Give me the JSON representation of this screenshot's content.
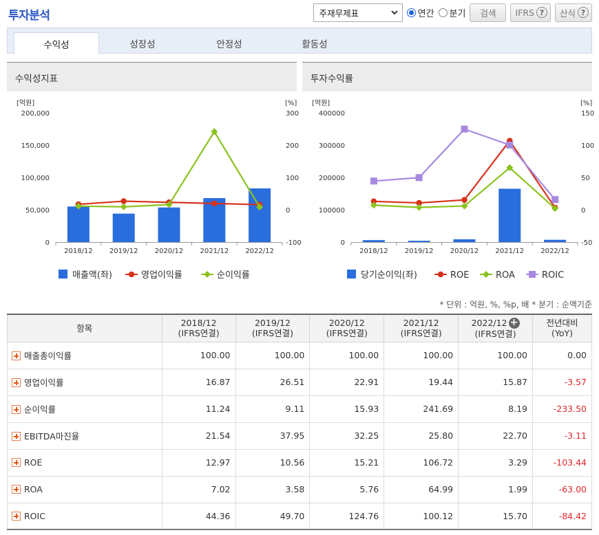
{
  "header": {
    "title": "투자분석",
    "select_value": "주재무제표",
    "radio_annual": "연간",
    "radio_quarter": "분기",
    "search_button": "검색",
    "ifrs_button": "IFRS",
    "calc_button": "산식",
    "help_glyph": "?"
  },
  "tabs": [
    "수익성",
    "성장성",
    "안정성",
    "활동성"
  ],
  "colors": {
    "bar": "#2a6ddc",
    "red_line": "#d6321c",
    "green_line": "#8cc21f",
    "purple_line": "#a789e0"
  },
  "chart_data": [
    {
      "type": "bar",
      "panel_title": "수익성지표",
      "left_unit": "[억원]",
      "right_unit": "[%]",
      "categories": [
        "2018/12",
        "2019/12",
        "2020/12",
        "2021/12",
        "2022/12"
      ],
      "left_ticks": [
        "200,000",
        "150,000",
        "100,000",
        "50,000",
        "0"
      ],
      "right_ticks": [
        "300",
        "200",
        "100",
        "0",
        "-100"
      ],
      "left_ylim": [
        0,
        200000
      ],
      "right_ylim": [
        -100,
        300
      ],
      "grid": false,
      "legend_position": "bottom",
      "series": [
        {
          "name": "매출액(좌)",
          "type": "bar",
          "axis": "left",
          "values": [
            55000,
            44000,
            53500,
            68000,
            83000
          ]
        },
        {
          "name": "영업이익률",
          "type": "line",
          "axis": "right",
          "values": [
            16.87,
            26.51,
            22.91,
            19.44,
            15.87
          ]
        },
        {
          "name": "순이익률",
          "type": "line",
          "axis": "right",
          "values": [
            11.24,
            9.11,
            15.93,
            241.69,
            8.19
          ]
        }
      ]
    },
    {
      "type": "bar",
      "panel_title": "투자수익률",
      "left_unit": "[억원]",
      "right_unit": "[%]",
      "categories": [
        "2018/12",
        "2019/12",
        "2020/12",
        "2021/12",
        "2022/12"
      ],
      "left_ticks": [
        "400000",
        "300000",
        "200000",
        "100000",
        "0"
      ],
      "right_ticks": [
        "150",
        "100",
        "50",
        "0",
        "-50"
      ],
      "left_ylim": [
        0,
        400000
      ],
      "right_ylim": [
        -50,
        150
      ],
      "grid": false,
      "legend_position": "bottom",
      "series": [
        {
          "name": "당기순이익(좌)",
          "type": "bar",
          "axis": "left",
          "values": [
            6000,
            4000,
            8500,
            165000,
            7000
          ]
        },
        {
          "name": "ROE",
          "type": "line",
          "axis": "right",
          "values": [
            12.97,
            10.56,
            15.21,
            106.72,
            3.29
          ]
        },
        {
          "name": "ROA",
          "type": "line",
          "axis": "right",
          "values": [
            7.02,
            3.58,
            5.76,
            64.99,
            1.99
          ]
        },
        {
          "name": "ROIC",
          "type": "line",
          "axis": "right",
          "values": [
            44.36,
            49.7,
            124.76,
            100.12,
            15.7
          ]
        }
      ]
    }
  ],
  "note": "* 단위 : 억원, %, %p, 배    * 분기 : 순액기준",
  "table": {
    "item_header": "항목",
    "columns": [
      {
        "period": "2018/12",
        "basis": "(IFRS연결)"
      },
      {
        "period": "2019/12",
        "basis": "(IFRS연결)"
      },
      {
        "period": "2020/12",
        "basis": "(IFRS연결)"
      },
      {
        "period": "2021/12",
        "basis": "(IFRS연결)"
      },
      {
        "period": "2022/12",
        "basis": "(IFRS연결)"
      }
    ],
    "yoy_header": "전년대비",
    "yoy_sub": "(YoY)",
    "rows": [
      {
        "label": "매출총이익률",
        "values": [
          "100.00",
          "100.00",
          "100.00",
          "100.00",
          "100.00"
        ],
        "yoy": "0.00"
      },
      {
        "label": "영업이익률",
        "values": [
          "16.87",
          "26.51",
          "22.91",
          "19.44",
          "15.87"
        ],
        "yoy": "-3.57"
      },
      {
        "label": "순이익률",
        "values": [
          "11.24",
          "9.11",
          "15.93",
          "241.69",
          "8.19"
        ],
        "yoy": "-233.50"
      },
      {
        "label": "EBITDA마진율",
        "values": [
          "21.54",
          "37.95",
          "32.25",
          "25.80",
          "22.70"
        ],
        "yoy": "-3.11"
      },
      {
        "label": "ROE",
        "values": [
          "12.97",
          "10.56",
          "15.21",
          "106.72",
          "3.29"
        ],
        "yoy": "-103.44"
      },
      {
        "label": "ROA",
        "values": [
          "7.02",
          "3.58",
          "5.76",
          "64.99",
          "1.99"
        ],
        "yoy": "-63.00"
      },
      {
        "label": "ROIC",
        "values": [
          "44.36",
          "49.70",
          "124.76",
          "100.12",
          "15.70"
        ],
        "yoy": "-84.42"
      }
    ]
  }
}
